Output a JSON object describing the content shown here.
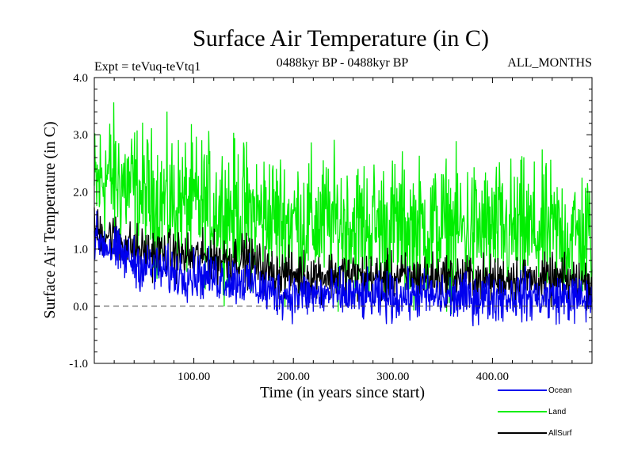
{
  "chart_data": {
    "type": "line",
    "title": "Surface Air Temperature (in C)",
    "experiment_label": "Expt = teVuq-teVtq1",
    "period_label": "0488kyr BP - 0488kyr BP",
    "months_label": "ALL_MONTHS",
    "xlabel": "Time (in years since start)",
    "ylabel": "Surface Air Temperature (in C)",
    "xlim": [
      0,
      500
    ],
    "ylim": [
      -1.0,
      4.0
    ],
    "x_ticks": [
      100,
      200,
      300,
      400
    ],
    "x_tick_labels": [
      "100.00",
      "200.00",
      "300.00",
      "400.00"
    ],
    "y_ticks": [
      -1,
      0,
      1,
      2,
      3,
      4
    ],
    "y_tick_labels": [
      "-1.0",
      "0.0",
      "1.0",
      "2.0",
      "3.0",
      "4.0"
    ],
    "zero_line": 0.0,
    "series": [
      {
        "name": "Land",
        "color": "#00ee00",
        "x": [
          0,
          10,
          25,
          50,
          75,
          100,
          125,
          150,
          175,
          200,
          225,
          250,
          275,
          300,
          325,
          350,
          375,
          400,
          425,
          450,
          475,
          500
        ],
        "values": [
          2.0,
          2.3,
          2.2,
          1.9,
          1.8,
          1.75,
          1.7,
          1.65,
          1.55,
          1.5,
          1.45,
          1.45,
          1.4,
          1.4,
          1.35,
          1.35,
          1.35,
          1.3,
          1.3,
          1.25,
          1.25,
          1.2
        ],
        "amplitude": 0.85
      },
      {
        "name": "AllSurf",
        "color": "#000000",
        "x": [
          0,
          10,
          25,
          50,
          75,
          100,
          125,
          150,
          175,
          200,
          225,
          250,
          275,
          300,
          325,
          350,
          375,
          400,
          425,
          450,
          475,
          500
        ],
        "values": [
          1.3,
          1.3,
          1.15,
          0.95,
          0.9,
          0.85,
          0.85,
          0.85,
          0.6,
          0.55,
          0.55,
          0.55,
          0.5,
          0.5,
          0.5,
          0.5,
          0.5,
          0.45,
          0.5,
          0.45,
          0.45,
          0.4
        ],
        "amplitude": 0.3
      },
      {
        "name": "Ocean",
        "color": "#0000ee",
        "x": [
          0,
          10,
          25,
          50,
          75,
          100,
          125,
          150,
          175,
          200,
          225,
          250,
          275,
          300,
          325,
          350,
          375,
          400,
          425,
          450,
          475,
          500
        ],
        "values": [
          1.2,
          1.1,
          0.9,
          0.7,
          0.6,
          0.55,
          0.5,
          0.45,
          0.25,
          0.2,
          0.2,
          0.2,
          0.15,
          0.15,
          0.2,
          0.15,
          0.15,
          0.15,
          0.2,
          0.15,
          0.15,
          0.1
        ],
        "amplitude": 0.3
      }
    ],
    "legend_position": "bottom-right",
    "legend": [
      {
        "label": "Ocean",
        "color": "#0000ee"
      },
      {
        "label": "Land",
        "color": "#00ee00"
      },
      {
        "label": "AllSurf",
        "color": "#000000"
      }
    ]
  }
}
